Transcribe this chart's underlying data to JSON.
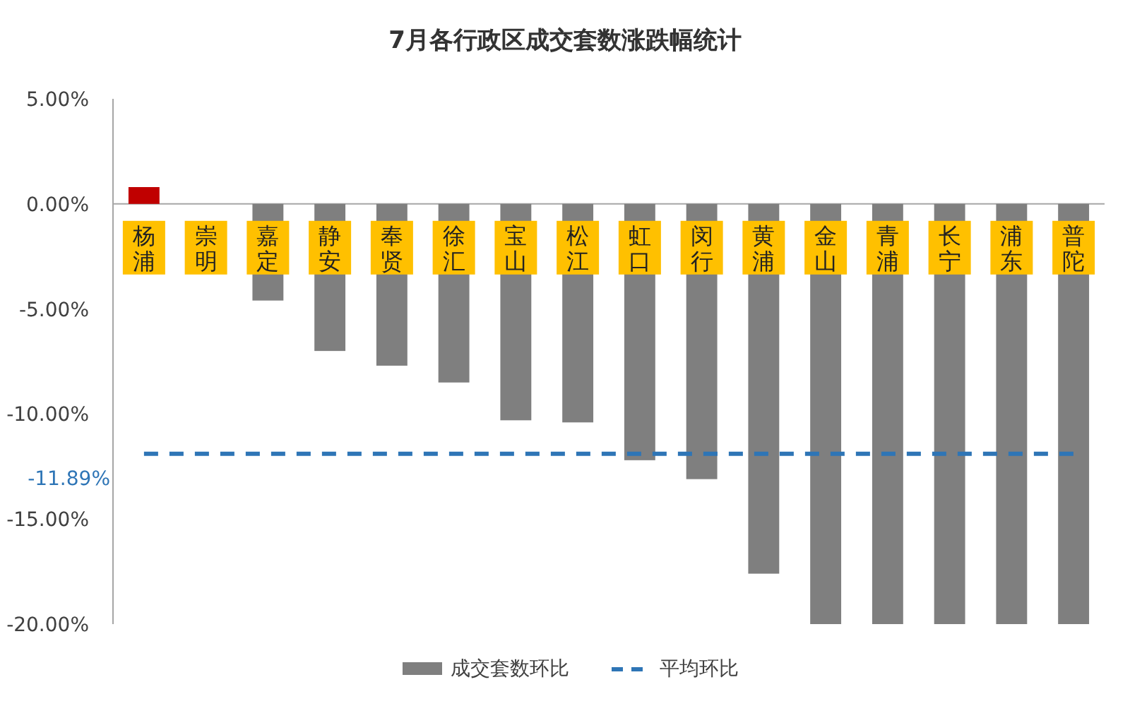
{
  "chart_data": {
    "type": "bar",
    "title": "7月各行政区成交套数涨跌幅统计",
    "categories": [
      "杨浦",
      "崇明",
      "嘉定",
      "静安",
      "奉贤",
      "徐汇",
      "宝山",
      "松江",
      "虹口",
      "闵行",
      "黄浦",
      "金山",
      "青浦",
      "长宁",
      "浦东",
      "普陀"
    ],
    "series": [
      {
        "name": "成交套数环比",
        "color": "#7f7f7f",
        "colors": [
          "#c00000",
          null,
          "#7f7f7f",
          "#7f7f7f",
          "#7f7f7f",
          "#7f7f7f",
          "#7f7f7f",
          "#7f7f7f",
          "#7f7f7f",
          "#7f7f7f",
          "#7f7f7f",
          "#7f7f7f",
          "#7f7f7f",
          "#7f7f7f",
          "#7f7f7f",
          "#7f7f7f"
        ],
        "values": [
          0.8,
          null,
          -4.6,
          -7.0,
          -7.7,
          -8.5,
          -10.3,
          -10.4,
          -12.2,
          -13.1,
          -17.6,
          -20.0,
          -20.0,
          -20.0,
          -20.0,
          -20.0
        ]
      },
      {
        "name": "平均环比",
        "type": "line",
        "color": "#2e75b6",
        "line_style": "dashed",
        "values": [
          -11.89,
          -11.89,
          -11.89,
          -11.89,
          -11.89,
          -11.89,
          -11.89,
          -11.89,
          -11.89,
          -11.89,
          -11.89,
          -11.89,
          -11.89,
          -11.89,
          -11.89,
          -11.89
        ]
      }
    ],
    "ylim": [
      -20,
      5
    ],
    "yticks": [
      {
        "value": 5,
        "label": "5.00%"
      },
      {
        "value": 0,
        "label": "0.00%"
      },
      {
        "value": -5,
        "label": "-5.00%"
      },
      {
        "value": -10,
        "label": "-10.00%"
      },
      {
        "value": -15,
        "label": "-15.00%"
      },
      {
        "value": -20,
        "label": "-20.00%"
      }
    ],
    "annotations": [
      "-11.89%"
    ],
    "grid": false,
    "legend": "bottom"
  }
}
